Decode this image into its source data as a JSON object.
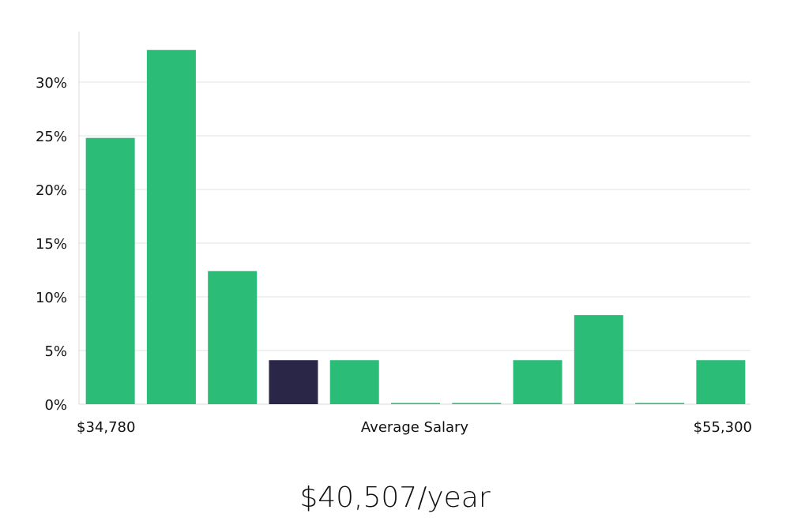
{
  "chart_data": {
    "type": "bar",
    "xlabel": "Average Salary",
    "x_range_labels": {
      "min": "$34,780",
      "max": "$55,300"
    },
    "y_tick_labels": [
      "0%",
      "5%",
      "10%",
      "15%",
      "20%",
      "25%",
      "30%"
    ],
    "ylim": [
      0,
      33
    ],
    "grid": true,
    "values": [
      24.8,
      33.0,
      12.4,
      4.1,
      4.1,
      0,
      0,
      4.1,
      8.3,
      0,
      4.1
    ],
    "highlight_index": 3,
    "colors": {
      "bar": "#2bbd78",
      "highlight": "#2a2647",
      "grid": "#e3e3e3",
      "axis": "#d8d8d8"
    }
  },
  "summary": {
    "salary_text": "$40,507/year"
  }
}
